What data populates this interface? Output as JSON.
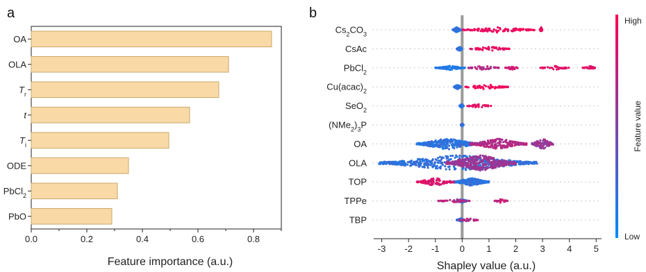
{
  "chart_data": [
    {
      "panel": "a",
      "type": "bar",
      "orientation": "horizontal",
      "xlabel": "Feature importance (a.u.)",
      "xlim": [
        0,
        0.9
      ],
      "xticks": [
        "0.0",
        "0.2",
        "0.4",
        "0.6",
        "0.8"
      ],
      "bar_color": "#f9d9a6",
      "bar_edge_color": "#c8a86a",
      "categories": [
        {
          "base": "OA",
          "sub": "",
          "italic": false
        },
        {
          "base": "OLA",
          "sub": "",
          "italic": false
        },
        {
          "base": "T",
          "sub": "r",
          "italic": true
        },
        {
          "base": "t",
          "sub": "",
          "italic": true
        },
        {
          "base": "T",
          "sub": "i",
          "italic": true
        },
        {
          "base": "ODE",
          "sub": "",
          "italic": false
        },
        {
          "base": "PbCl",
          "sub": "2",
          "italic": false
        },
        {
          "base": "PbO",
          "sub": "",
          "italic": false
        }
      ],
      "values": [
        0.865,
        0.71,
        0.675,
        0.57,
        0.495,
        0.35,
        0.31,
        0.29
      ]
    },
    {
      "panel": "b",
      "type": "scatter",
      "subtype": "beeswarm",
      "xlabel": "Shapley value (a.u.)",
      "xlim": [
        -3.3,
        5.2
      ],
      "xticks": [
        "-3",
        "-2",
        "-1",
        "0",
        "1",
        "2",
        "3",
        "4",
        "5"
      ],
      "colorbar": {
        "label": "Feature value",
        "high": "High",
        "low": "Low",
        "high_color": "#ff0052",
        "low_color": "#008bfb"
      },
      "features": [
        {
          "parts": [
            [
              "Cs",
              ""
            ],
            [
              "2",
              "sub"
            ],
            [
              "CO",
              ""
            ],
            [
              "3",
              "sub"
            ]
          ],
          "pos": [
            [
              0.0,
              2.7,
              0.95
            ],
            [
              2.9,
              3.0,
              0.9
            ]
          ],
          "neg": [
            [
              -0.35,
              -0.05,
              0.1
            ]
          ],
          "width": 0.2
        },
        {
          "parts": [
            [
              "CsAc",
              ""
            ]
          ],
          "pos": [
            [
              0.3,
              1.8,
              0.9
            ]
          ],
          "neg": [
            [
              -0.2,
              0.0,
              0.1
            ]
          ],
          "width": 0.14
        },
        {
          "parts": [
            [
              "PbCl",
              ""
            ],
            [
              "2",
              "sub"
            ]
          ],
          "pos": [
            [
              0.2,
              1.4,
              0.7
            ],
            [
              1.6,
              2.1,
              0.8
            ],
            [
              2.9,
              4.0,
              0.9
            ],
            [
              4.5,
              5.0,
              0.9
            ]
          ],
          "neg": [
            [
              -1.0,
              0.1,
              0.05
            ]
          ],
          "width": 0.12
        },
        {
          "parts": [
            [
              "Cu(acac)",
              ""
            ],
            [
              "2",
              "sub"
            ]
          ],
          "pos": [
            [
              0.0,
              1.75,
              0.95
            ]
          ],
          "neg": [
            [
              -0.3,
              -0.05,
              0.1
            ]
          ],
          "width": 0.16
        },
        {
          "parts": [
            [
              "SeO",
              ""
            ],
            [
              "2",
              "sub"
            ]
          ],
          "pos": [
            [
              0.1,
              1.1,
              0.9
            ]
          ],
          "neg": [
            [
              -0.1,
              0.05,
              0.1
            ]
          ],
          "width": 0.1
        },
        {
          "parts": [
            [
              "(NMe",
              ""
            ],
            [
              "2",
              "sub"
            ],
            [
              ")",
              ""
            ],
            [
              "3",
              "sub"
            ],
            [
              "P",
              ""
            ]
          ],
          "pos": [],
          "neg": [
            [
              -0.05,
              0.05,
              0.1
            ]
          ],
          "width": 0.06
        },
        {
          "parts": [
            [
              "OA",
              ""
            ]
          ],
          "pos": [
            [
              0.3,
              2.4,
              0.7
            ],
            [
              2.6,
              3.4,
              0.6
            ]
          ],
          "neg": [
            [
              -1.7,
              0.6,
              0.1
            ]
          ],
          "width": 0.55
        },
        {
          "parts": [
            [
              "OLA",
              ""
            ]
          ],
          "pos": [
            [
              -0.6,
              2.0,
              0.6
            ]
          ],
          "neg": [
            [
              -3.1,
              2.8,
              0.12
            ]
          ],
          "width": 0.85
        },
        {
          "parts": [
            [
              "TOP",
              ""
            ]
          ],
          "pos": [
            [
              -1.7,
              -0.3,
              0.85
            ]
          ],
          "neg": [
            [
              -0.3,
              1.0,
              0.1
            ]
          ],
          "width": 0.35
        },
        {
          "parts": [
            [
              "TPPe",
              ""
            ]
          ],
          "pos": [
            [
              -0.9,
              0.3,
              0.7
            ],
            [
              1.2,
              1.7,
              0.8
            ]
          ],
          "neg": [
            [
              -0.2,
              0.2,
              0.1
            ]
          ],
          "width": 0.1
        },
        {
          "parts": [
            [
              "TBP",
              ""
            ]
          ],
          "pos": [
            [
              -0.1,
              0.6,
              0.7
            ]
          ],
          "neg": [
            [
              -0.2,
              0.1,
              0.1
            ]
          ],
          "width": 0.08
        }
      ]
    }
  ],
  "panels": {
    "a": "a",
    "b": "b"
  }
}
